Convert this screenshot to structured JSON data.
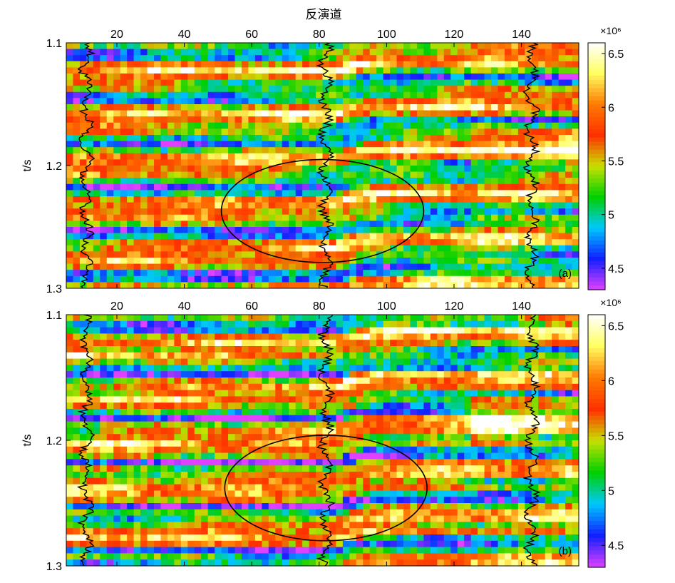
{
  "figure_title": "反演道",
  "chart_data": [
    {
      "type": "heatmap",
      "panel_label": "(a)",
      "xlabel": "反演道",
      "ylabel": "t/s",
      "xlim": [
        5,
        157
      ],
      "ylim": [
        1.1,
        1.3
      ],
      "y_inverted": true,
      "x_ticks": [
        20,
        40,
        60,
        80,
        100,
        120,
        140
      ],
      "y_ticks": [
        1.1,
        1.2,
        1.3
      ],
      "x_tick_labels": [
        "20",
        "40",
        "60",
        "80",
        "100",
        "120",
        "140"
      ],
      "y_tick_labels": [
        "1.1",
        "1.2",
        "1.3"
      ],
      "colorbar": {
        "multiplier_label": "×10⁶",
        "range": [
          4.3,
          6.6
        ],
        "ticks": [
          4.5,
          5,
          5.5,
          6,
          6.5
        ],
        "tick_labels": [
          "4.5",
          "5",
          "5.5",
          "6",
          "6.5"
        ],
        "colormap": [
          "#e040ff",
          "#1020ff",
          "#00c8ff",
          "#00d000",
          "#c8e000",
          "#ff3000",
          "#ff7a00",
          "#ffff60",
          "#ffffff"
        ]
      },
      "well_traces_at_x": [
        11,
        82,
        143
      ],
      "ellipse": {
        "center": [
          81,
          1.237
        ],
        "semi_axes": [
          30,
          0.042
        ]
      }
    },
    {
      "type": "heatmap",
      "panel_label": "(b)",
      "xlabel": "",
      "ylabel": "t/s",
      "xlim": [
        5,
        157
      ],
      "ylim": [
        1.1,
        1.3
      ],
      "y_inverted": true,
      "x_ticks": [
        20,
        40,
        60,
        80,
        100,
        120,
        140
      ],
      "y_ticks": [
        1.1,
        1.2,
        1.3
      ],
      "x_tick_labels": [
        "20",
        "40",
        "60",
        "80",
        "100",
        "120",
        "140"
      ],
      "y_tick_labels": [
        "1.1",
        "1.2",
        "1.3"
      ],
      "colorbar": {
        "multiplier_label": "×10⁶",
        "range": [
          4.3,
          6.6
        ],
        "ticks": [
          4.5,
          5,
          5.5,
          6,
          6.5
        ],
        "tick_labels": [
          "4.5",
          "5",
          "5.5",
          "6",
          "6.5"
        ],
        "colormap": [
          "#e040ff",
          "#1020ff",
          "#00c8ff",
          "#00d000",
          "#c8e000",
          "#ff3000",
          "#ff7a00",
          "#ffff60",
          "#ffffff"
        ]
      },
      "well_traces_at_x": [
        11,
        82,
        143
      ],
      "ellipse": {
        "center": [
          82,
          1.238
        ],
        "semi_axes": [
          30,
          0.042
        ]
      }
    }
  ]
}
